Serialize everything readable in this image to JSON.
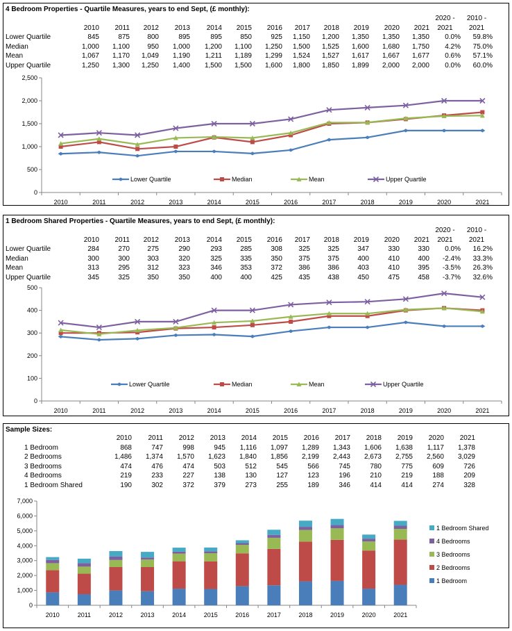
{
  "colors": {
    "lower": "#4a7ebb",
    "median": "#be4b48",
    "mean": "#98b954",
    "upper": "#7d60a0",
    "beds1": "#4a7ebb",
    "beds2": "#be4b48",
    "beds3": "#98b954",
    "beds4": "#7d60a0",
    "shared": "#46aac5"
  },
  "panel1": {
    "title": "4 Bedroom Properties - Quartile Measures, years to end Sept, (£ monthly):",
    "change_hdr1": [
      "2020 -",
      "2010 -"
    ],
    "change_hdr2": [
      "2021",
      "2021"
    ],
    "years": [
      "2010",
      "2011",
      "2012",
      "2013",
      "2014",
      "2015",
      "2016",
      "2017",
      "2018",
      "2019",
      "2020",
      "2021"
    ],
    "rows": [
      {
        "label": "Lower Quartile",
        "cells": [
          "845",
          "875",
          "800",
          "895",
          "895",
          "850",
          "925",
          "1,150",
          "1,200",
          "1,350",
          "1,350",
          "1,350"
        ],
        "c1": "0.0%",
        "c2": "59.8%"
      },
      {
        "label": "Median",
        "cells": [
          "1,000",
          "1,100",
          "950",
          "1,000",
          "1,200",
          "1,100",
          "1,250",
          "1,500",
          "1,525",
          "1,600",
          "1,680",
          "1,750"
        ],
        "c1": "4.2%",
        "c2": "75.0%"
      },
      {
        "label": "Mean",
        "cells": [
          "1,067",
          "1,170",
          "1,049",
          "1,190",
          "1,211",
          "1,189",
          "1,299",
          "1,524",
          "1,527",
          "1,617",
          "1,667",
          "1,677"
        ],
        "c1": "0.6%",
        "c2": "57.1%"
      },
      {
        "label": "Upper Quartile",
        "cells": [
          "1,250",
          "1,300",
          "1,250",
          "1,400",
          "1,500",
          "1,500",
          "1,600",
          "1,800",
          "1,850",
          "1,899",
          "2,000",
          "2,000"
        ],
        "c1": "0.0%",
        "c2": "60.0%"
      }
    ]
  },
  "panel2": {
    "title": "1 Bedroom Shared Properties - Quartile Measures, years to end Sept, (£ monthly):",
    "change_hdr1": [
      "2020 -",
      "2010 -"
    ],
    "change_hdr2": [
      "2021",
      "2021"
    ],
    "years": [
      "2010",
      "2011",
      "2012",
      "2013",
      "2014",
      "2015",
      "2016",
      "2017",
      "2018",
      "2019",
      "2020",
      "2021"
    ],
    "rows": [
      {
        "label": "Lower Quartile",
        "cells": [
          "284",
          "270",
          "275",
          "290",
          "293",
          "285",
          "308",
          "325",
          "325",
          "347",
          "330",
          "330"
        ],
        "c1": "0.0%",
        "c2": "16.2%"
      },
      {
        "label": "Median",
        "cells": [
          "300",
          "300",
          "303",
          "320",
          "325",
          "335",
          "350",
          "375",
          "375",
          "400",
          "410",
          "400"
        ],
        "c1": "-2.4%",
        "c2": "33.3%"
      },
      {
        "label": "Mean",
        "cells": [
          "313",
          "295",
          "312",
          "323",
          "346",
          "353",
          "372",
          "386",
          "386",
          "403",
          "410",
          "395"
        ],
        "c1": "-3.5%",
        "c2": "26.3%"
      },
      {
        "label": "Upper Quartile",
        "cells": [
          "345",
          "325",
          "350",
          "350",
          "400",
          "400",
          "425",
          "435",
          "438",
          "450",
          "475",
          "458"
        ],
        "c1": "-3.7%",
        "c2": "32.6%"
      }
    ]
  },
  "panel3": {
    "title": "Sample Sizes:",
    "years": [
      "2010",
      "2011",
      "2012",
      "2013",
      "2014",
      "2015",
      "2016",
      "2017",
      "2018",
      "2019",
      "2020",
      "2021"
    ],
    "rows": [
      {
        "label": "1 Bedroom",
        "cells": [
          "868",
          "747",
          "998",
          "945",
          "1,116",
          "1,097",
          "1,289",
          "1,343",
          "1,606",
          "1,638",
          "1,117",
          "1,378"
        ]
      },
      {
        "label": "2 Bedrooms",
        "cells": [
          "1,486",
          "1,374",
          "1,570",
          "1,623",
          "1,840",
          "1,856",
          "2,199",
          "2,443",
          "2,673",
          "2,755",
          "2,560",
          "3,029"
        ]
      },
      {
        "label": "3 Bedrooms",
        "cells": [
          "474",
          "476",
          "474",
          "503",
          "512",
          "545",
          "566",
          "745",
          "780",
          "775",
          "609",
          "726"
        ]
      },
      {
        "label": "4 Bedrooms",
        "cells": [
          "219",
          "233",
          "227",
          "138",
          "130",
          "127",
          "123",
          "196",
          "210",
          "219",
          "188",
          "209"
        ]
      },
      {
        "label": "1 Bedroom Shared",
        "cells": [
          "190",
          "302",
          "372",
          "379",
          "273",
          "255",
          "189",
          "346",
          "414",
          "414",
          "274",
          "328"
        ]
      }
    ]
  },
  "chart_data": [
    {
      "type": "line",
      "x": [
        "2010",
        "2011",
        "2012",
        "2013",
        "2014",
        "2015",
        "2016",
        "2017",
        "2018",
        "2019",
        "2020",
        "2021"
      ],
      "ylim": [
        0,
        2500
      ],
      "yticks": [
        "0",
        "500",
        "1,000",
        "1,500",
        "2,000",
        "2,500"
      ],
      "grid": false,
      "legend": "bottom",
      "series": [
        {
          "name": "Lower Quartile",
          "values": [
            845,
            875,
            800,
            895,
            895,
            850,
            925,
            1150,
            1200,
            1350,
            1350,
            1350
          ]
        },
        {
          "name": "Median",
          "values": [
            1000,
            1100,
            950,
            1000,
            1200,
            1100,
            1250,
            1500,
            1525,
            1600,
            1680,
            1750
          ]
        },
        {
          "name": "Mean",
          "values": [
            1067,
            1170,
            1049,
            1190,
            1211,
            1189,
            1299,
            1524,
            1527,
            1617,
            1667,
            1677
          ]
        },
        {
          "name": "Upper Quartile",
          "values": [
            1250,
            1300,
            1250,
            1400,
            1500,
            1500,
            1600,
            1800,
            1850,
            1899,
            2000,
            2000
          ]
        }
      ]
    },
    {
      "type": "line",
      "x": [
        "2010",
        "2011",
        "2012",
        "2013",
        "2014",
        "2015",
        "2016",
        "2017",
        "2018",
        "2019",
        "2020",
        "2021"
      ],
      "ylim": [
        0,
        500
      ],
      "yticks": [
        "0",
        "100",
        "200",
        "300",
        "400",
        "500"
      ],
      "grid": false,
      "legend": "bottom",
      "series": [
        {
          "name": "Lower Quartile",
          "values": [
            284,
            270,
            275,
            290,
            293,
            285,
            308,
            325,
            325,
            347,
            330,
            330
          ]
        },
        {
          "name": "Median",
          "values": [
            300,
            300,
            303,
            320,
            325,
            335,
            350,
            375,
            375,
            400,
            410,
            400
          ]
        },
        {
          "name": "Mean",
          "values": [
            313,
            295,
            312,
            323,
            346,
            353,
            372,
            386,
            386,
            403,
            410,
            395
          ]
        },
        {
          "name": "Upper Quartile",
          "values": [
            345,
            325,
            350,
            350,
            400,
            400,
            425,
            435,
            438,
            450,
            475,
            458
          ]
        }
      ]
    },
    {
      "type": "bar",
      "stacked": true,
      "categories": [
        "2010",
        "2011",
        "2012",
        "2013",
        "2014",
        "2015",
        "2016",
        "2017",
        "2018",
        "2019",
        "2020",
        "2021"
      ],
      "ylim": [
        0,
        7000
      ],
      "yticks": [
        "0",
        "1,000",
        "2,000",
        "3,000",
        "4,000",
        "5,000",
        "6,000",
        "7,000"
      ],
      "grid": false,
      "legend": "right",
      "series": [
        {
          "name": "1 Bedroom",
          "values": [
            868,
            747,
            998,
            945,
            1116,
            1097,
            1289,
            1343,
            1606,
            1638,
            1117,
            1378
          ]
        },
        {
          "name": "2 Bedrooms",
          "values": [
            1486,
            1374,
            1570,
            1623,
            1840,
            1856,
            2199,
            2443,
            2673,
            2755,
            2560,
            3029
          ]
        },
        {
          "name": "3 Bedrooms",
          "values": [
            474,
            476,
            474,
            503,
            512,
            545,
            566,
            745,
            780,
            775,
            609,
            726
          ]
        },
        {
          "name": "4 Bedrooms",
          "values": [
            219,
            233,
            227,
            138,
            130,
            127,
            123,
            196,
            210,
            219,
            188,
            209
          ]
        },
        {
          "name": "1 Bedroom Shared",
          "values": [
            190,
            302,
            372,
            379,
            273,
            255,
            189,
            346,
            414,
            414,
            274,
            328
          ]
        }
      ]
    }
  ]
}
